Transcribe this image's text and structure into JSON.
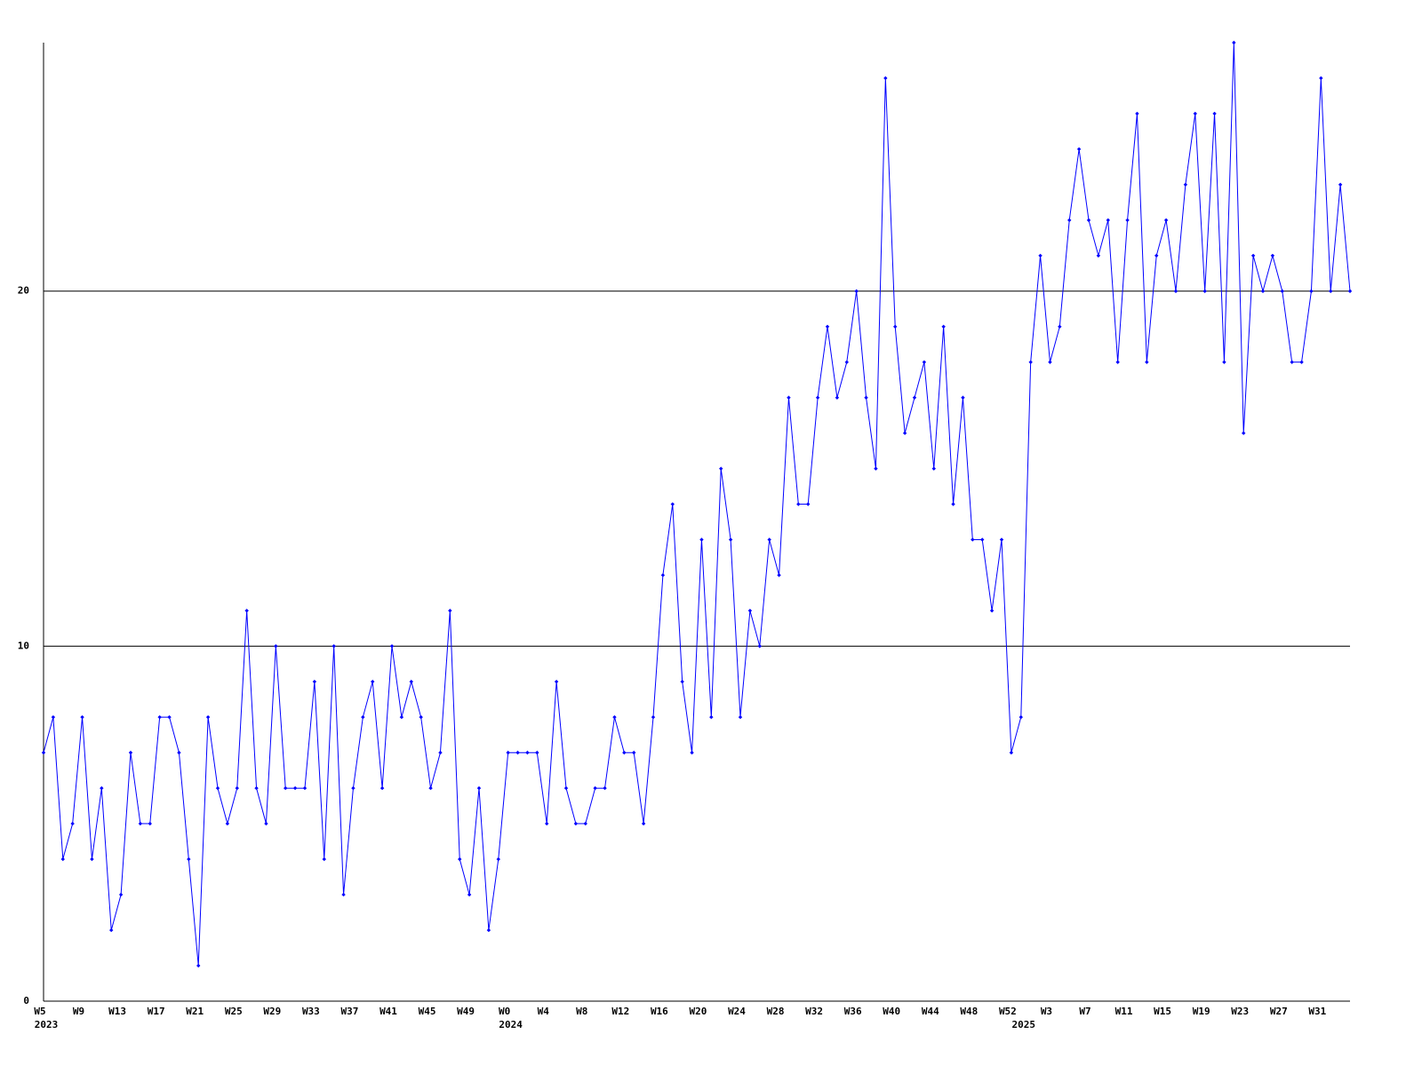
{
  "chart_data": {
    "type": "line",
    "categories": [
      "W5",
      null,
      null,
      null,
      "W9",
      null,
      null,
      null,
      "W13",
      null,
      null,
      null,
      "W17",
      null,
      null,
      null,
      "W21",
      null,
      null,
      null,
      "W25",
      null,
      null,
      null,
      "W29",
      null,
      null,
      null,
      "W33",
      null,
      null,
      null,
      "W37",
      null,
      null,
      null,
      "W41",
      null,
      null,
      null,
      "W45",
      null,
      null,
      null,
      "W49",
      null,
      null,
      null,
      "W0",
      null,
      null,
      null,
      "W4",
      null,
      null,
      null,
      "W8",
      null,
      null,
      null,
      "W12",
      null,
      null,
      null,
      "W16",
      null,
      null,
      null,
      "W20",
      null,
      null,
      null,
      "W24",
      null,
      null,
      null,
      "W28",
      null,
      null,
      null,
      "W32",
      null,
      null,
      null,
      "W36",
      null,
      null,
      null,
      "W40",
      null,
      null,
      null,
      "W44",
      null,
      null,
      null,
      "W48",
      null,
      null,
      null,
      "W52",
      null,
      null,
      null,
      "W3",
      null,
      null,
      null,
      "W7",
      null,
      null,
      null,
      "W11",
      null,
      null,
      null,
      "W15",
      null,
      null,
      null,
      "W19",
      null,
      null,
      null,
      "W23",
      null,
      null,
      null,
      "W27",
      null,
      null,
      null,
      "W31",
      null,
      null,
      null
    ],
    "year_labels": [
      {
        "index": 0,
        "label": "2023"
      },
      {
        "index": 48,
        "label": "2024"
      },
      {
        "index": 101,
        "label": "2025"
      }
    ],
    "series": [
      {
        "color": "#0000ff",
        "values": [
          7,
          8,
          4,
          5,
          8,
          4,
          6,
          2,
          3,
          7,
          5,
          5,
          8,
          8,
          7,
          4,
          1,
          8,
          6,
          5,
          6,
          11,
          6,
          5,
          10,
          6,
          6,
          6,
          9,
          4,
          10,
          3,
          6,
          8,
          9,
          6,
          10,
          8,
          9,
          8,
          6,
          7,
          11,
          4,
          3,
          6,
          2,
          4,
          7,
          7,
          7,
          7,
          5,
          9,
          6,
          5,
          5,
          6,
          6,
          8,
          7,
          7,
          5,
          8,
          12,
          14,
          9,
          7,
          13,
          8,
          15,
          13,
          8,
          11,
          10,
          13,
          12,
          17,
          14,
          14,
          17,
          19,
          17,
          18,
          20,
          17,
          15,
          26,
          19,
          16,
          17,
          18,
          15,
          19,
          14,
          17,
          13,
          13,
          11,
          13,
          7,
          8,
          18,
          21,
          18,
          19,
          22,
          24,
          22,
          21,
          22,
          18,
          22,
          25,
          18,
          21,
          22,
          20,
          23,
          25,
          20,
          25,
          18,
          27,
          16,
          21,
          20,
          21,
          20,
          18,
          18,
          20,
          26,
          20,
          23,
          20
        ]
      }
    ],
    "ylim": [
      0,
      27
    ],
    "yticks": [
      0,
      10,
      20
    ],
    "grid": true
  }
}
